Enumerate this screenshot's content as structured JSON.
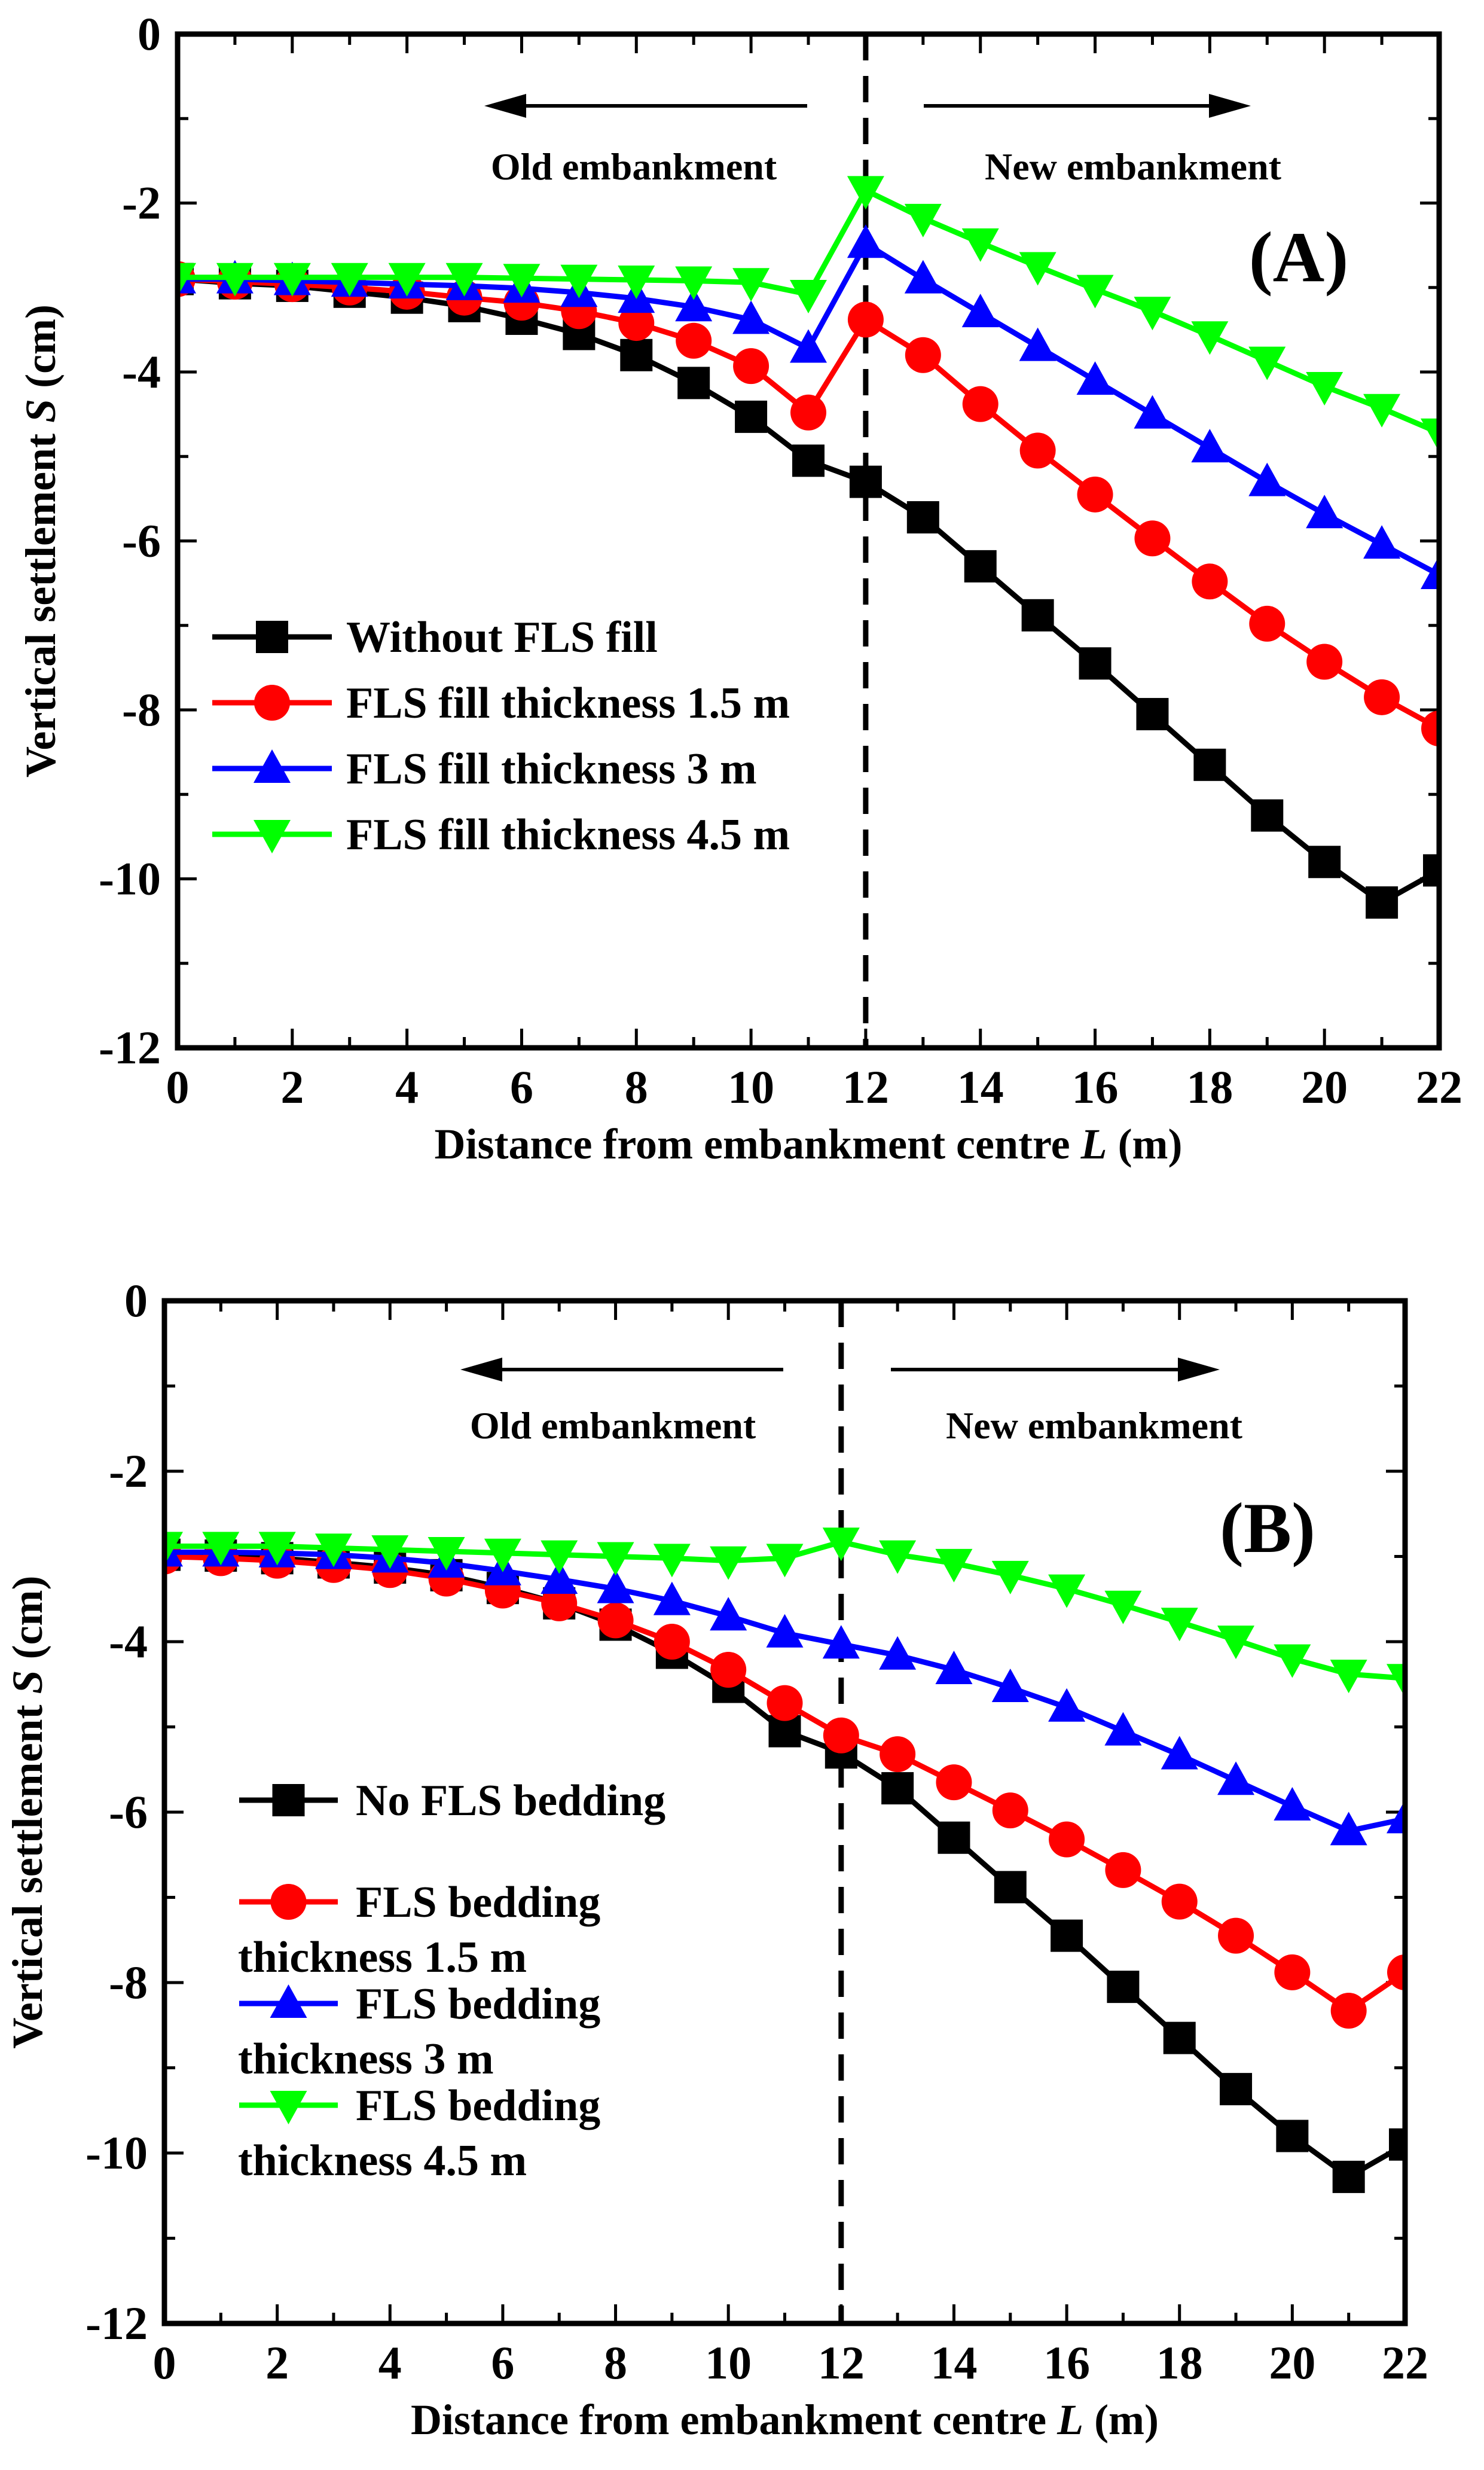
{
  "chart_data": [
    {
      "type": "line",
      "panel_label": "(A)",
      "xlabel_pre": "Distance from embankment centre ",
      "xlabel_var": "L",
      "xlabel_post": " (m)",
      "ylabel_pre": "Vertical settlement  ",
      "ylabel_var": "S",
      "ylabel_post": " (cm)",
      "xlim": [
        0,
        22
      ],
      "ylim": [
        -12,
        0
      ],
      "xticks": [
        "0",
        "2",
        "4",
        "6",
        "8",
        "10",
        "12",
        "14",
        "16",
        "18",
        "20",
        "22"
      ],
      "yticks": [
        "0",
        "-2",
        "-4",
        "-6",
        "-8",
        "-10",
        "-12"
      ],
      "annotations": {
        "left": "Old embankment",
        "right": "New embankment"
      },
      "divider_x": 12,
      "legend_position": "left",
      "x": [
        0,
        1,
        2,
        3,
        4,
        5,
        6,
        7,
        8,
        9,
        10,
        11,
        12,
        13,
        14,
        15,
        16,
        17,
        18,
        19,
        20,
        21,
        22
      ],
      "series": [
        {
          "name": "Without FLS fill",
          "color": "#000000",
          "marker": "square",
          "values": [
            -2.9,
            -2.95,
            -2.98,
            -3.05,
            -3.12,
            -3.22,
            -3.37,
            -3.55,
            -3.8,
            -4.13,
            -4.53,
            -5.05,
            -5.3,
            -5.72,
            -6.3,
            -6.88,
            -7.45,
            -8.05,
            -8.65,
            -9.25,
            -9.8,
            -10.28,
            -9.9
          ]
        },
        {
          "name": "FLS fill thickness 1.5 m",
          "color": "#ff0000",
          "marker": "circle",
          "values": [
            -2.9,
            -2.93,
            -2.96,
            -3.0,
            -3.05,
            -3.12,
            -3.18,
            -3.28,
            -3.42,
            -3.63,
            -3.93,
            -4.48,
            -3.38,
            -3.8,
            -4.38,
            -4.93,
            -5.45,
            -5.97,
            -6.48,
            -6.98,
            -7.43,
            -7.85,
            -8.22
          ]
        },
        {
          "name": "FLS fill thickness 3 m",
          "color": "#0000ff",
          "marker": "triangle-up",
          "values": [
            -2.9,
            -2.9,
            -2.92,
            -2.94,
            -2.96,
            -2.98,
            -3.01,
            -3.06,
            -3.13,
            -3.23,
            -3.38,
            -3.72,
            -2.48,
            -2.9,
            -3.3,
            -3.7,
            -4.1,
            -4.5,
            -4.9,
            -5.3,
            -5.68,
            -6.04,
            -6.4
          ]
        },
        {
          "name": "FLS fill thickness 4.5 m",
          "color": "#00ff00",
          "marker": "triangle-down",
          "values": [
            -2.88,
            -2.88,
            -2.88,
            -2.88,
            -2.88,
            -2.88,
            -2.89,
            -2.9,
            -2.91,
            -2.92,
            -2.94,
            -3.08,
            -1.85,
            -2.18,
            -2.47,
            -2.75,
            -3.02,
            -3.28,
            -3.57,
            -3.87,
            -4.17,
            -4.43,
            -4.72
          ]
        }
      ]
    },
    {
      "type": "line",
      "panel_label": "(B)",
      "xlabel_pre": "Distance from embankment centre ",
      "xlabel_var": "L",
      "xlabel_post": " (m)",
      "ylabel_pre": "Vertical settlement  ",
      "ylabel_var": "S",
      "ylabel_post": " (cm)",
      "xlim": [
        0,
        22
      ],
      "ylim": [
        -12,
        0
      ],
      "xticks": [
        "0",
        "2",
        "4",
        "6",
        "8",
        "10",
        "12",
        "14",
        "16",
        "18",
        "20",
        "22"
      ],
      "yticks": [
        "0",
        "-2",
        "-4",
        "-6",
        "-8",
        "-10",
        "-12"
      ],
      "annotations": {
        "left": "Old embankment",
        "right": "New embankment"
      },
      "divider_x": 12,
      "legend_position": "left",
      "x": [
        0,
        1,
        2,
        3,
        4,
        5,
        6,
        7,
        8,
        9,
        10,
        11,
        12,
        13,
        14,
        15,
        16,
        17,
        18,
        19,
        20,
        21,
        22
      ],
      "series": [
        {
          "name": "No FLS bedding",
          "legend_lines": [
            "No FLS bedding"
          ],
          "color": "#000000",
          "marker": "square",
          "values": [
            -2.98,
            -2.99,
            -3.02,
            -3.07,
            -3.13,
            -3.22,
            -3.37,
            -3.55,
            -3.8,
            -4.13,
            -4.53,
            -5.05,
            -5.3,
            -5.72,
            -6.3,
            -6.88,
            -7.45,
            -8.05,
            -8.65,
            -9.25,
            -9.8,
            -10.28,
            -9.9
          ]
        },
        {
          "name": "FLS bedding thickness 1.5 m",
          "legend_lines": [
            "FLS bedding",
            "thickness 1.5 m"
          ],
          "color": "#ff0000",
          "marker": "circle",
          "values": [
            -3.0,
            -3.02,
            -3.05,
            -3.1,
            -3.16,
            -3.26,
            -3.4,
            -3.55,
            -3.75,
            -4.0,
            -4.33,
            -4.72,
            -5.1,
            -5.32,
            -5.65,
            -5.98,
            -6.32,
            -6.68,
            -7.05,
            -7.45,
            -7.88,
            -8.33,
            -7.88
          ]
        },
        {
          "name": "FLS bedding thickness 3 m",
          "legend_lines": [
            "FLS bedding",
            "thickness  3 m"
          ],
          "color": "#0000ff",
          "marker": "triangle-up",
          "values": [
            -2.95,
            -2.95,
            -2.96,
            -2.98,
            -3.02,
            -3.08,
            -3.17,
            -3.27,
            -3.38,
            -3.52,
            -3.7,
            -3.9,
            -4.03,
            -4.16,
            -4.33,
            -4.54,
            -4.77,
            -5.05,
            -5.33,
            -5.63,
            -5.93,
            -6.22,
            -6.08
          ]
        },
        {
          "name": "FLS bedding thickness 4.5 m",
          "legend_lines": [
            "FLS bedding",
            "thickness 4.5 m"
          ],
          "color": "#00ff00",
          "marker": "triangle-down",
          "values": [
            -2.88,
            -2.88,
            -2.88,
            -2.9,
            -2.92,
            -2.94,
            -2.96,
            -2.98,
            -3.0,
            -3.02,
            -3.05,
            -3.02,
            -2.83,
            -2.98,
            -3.08,
            -3.22,
            -3.38,
            -3.57,
            -3.77,
            -3.98,
            -4.2,
            -4.38,
            -4.43
          ]
        }
      ]
    }
  ]
}
